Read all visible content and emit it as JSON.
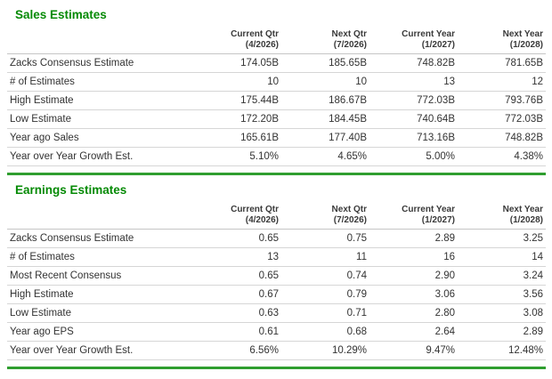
{
  "theme": {
    "title_green": "#058a05",
    "separator_green": "#2f9e2f",
    "border_gray": "#d6d6d6",
    "text_color": "#333333"
  },
  "columns": [
    {
      "line1": "Current Qtr",
      "line2": "(4/2026)"
    },
    {
      "line1": "Next Qtr",
      "line2": "(7/2026)"
    },
    {
      "line1": "Current Year",
      "line2": "(1/2027)"
    },
    {
      "line1": "Next Year",
      "line2": "(1/2028)"
    }
  ],
  "sales": {
    "title": "Sales Estimates",
    "rows": [
      {
        "label": "Zacks Consensus Estimate",
        "values": [
          "174.05B",
          "185.65B",
          "748.82B",
          "781.65B"
        ]
      },
      {
        "label": "# of Estimates",
        "values": [
          "10",
          "10",
          "13",
          "12"
        ]
      },
      {
        "label": "High Estimate",
        "values": [
          "175.44B",
          "186.67B",
          "772.03B",
          "793.76B"
        ]
      },
      {
        "label": "Low Estimate",
        "values": [
          "172.20B",
          "184.45B",
          "740.64B",
          "772.03B"
        ]
      },
      {
        "label": "Year ago Sales",
        "values": [
          "165.61B",
          "177.40B",
          "713.16B",
          "748.82B"
        ]
      },
      {
        "label": "Year over Year Growth Est.",
        "values": [
          "5.10%",
          "4.65%",
          "5.00%",
          "4.38%"
        ]
      }
    ]
  },
  "earnings": {
    "title": "Earnings Estimates",
    "rows": [
      {
        "label": "Zacks Consensus Estimate",
        "values": [
          "0.65",
          "0.75",
          "2.89",
          "3.25"
        ]
      },
      {
        "label": "# of Estimates",
        "values": [
          "13",
          "11",
          "16",
          "14"
        ]
      },
      {
        "label": "Most Recent Consensus",
        "values": [
          "0.65",
          "0.74",
          "2.90",
          "3.24"
        ]
      },
      {
        "label": "High Estimate",
        "values": [
          "0.67",
          "0.79",
          "3.06",
          "3.56"
        ]
      },
      {
        "label": "Low Estimate",
        "values": [
          "0.63",
          "0.71",
          "2.80",
          "3.08"
        ]
      },
      {
        "label": "Year ago EPS",
        "values": [
          "0.61",
          "0.68",
          "2.64",
          "2.89"
        ]
      },
      {
        "label": "Year over Year Growth Est.",
        "values": [
          "6.56%",
          "10.29%",
          "9.47%",
          "12.48%"
        ]
      }
    ]
  }
}
